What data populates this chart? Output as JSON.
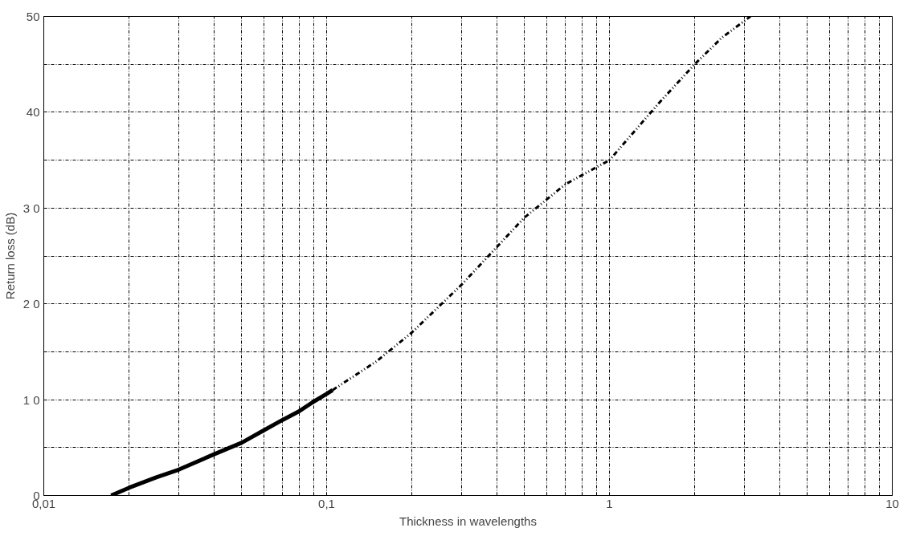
{
  "chart_data": {
    "type": "line",
    "xlabel": "Thickness in wavelengths",
    "ylabel": "Return loss (dB)",
    "log": "x",
    "grid": true,
    "xlim": [
      0.01,
      10
    ],
    "ylim": [
      0,
      50
    ],
    "xticks": [
      {
        "value": 0.01,
        "label": "0,01"
      },
      {
        "value": 0.02,
        "label": null
      },
      {
        "value": 0.03,
        "label": null
      },
      {
        "value": 0.04,
        "label": null
      },
      {
        "value": 0.05,
        "label": null
      },
      {
        "value": 0.06,
        "label": null
      },
      {
        "value": 0.07,
        "label": null
      },
      {
        "value": 0.08,
        "label": null
      },
      {
        "value": 0.09,
        "label": null
      },
      {
        "value": 0.1,
        "label": "0,1"
      },
      {
        "value": 0.2,
        "label": null
      },
      {
        "value": 0.3,
        "label": null
      },
      {
        "value": 0.4,
        "label": null
      },
      {
        "value": 0.5,
        "label": null
      },
      {
        "value": 0.6,
        "label": null
      },
      {
        "value": 0.7,
        "label": null
      },
      {
        "value": 0.8,
        "label": null
      },
      {
        "value": 0.9,
        "label": null
      },
      1,
      {
        "value": 2,
        "label": null
      },
      {
        "value": 3,
        "label": null
      },
      {
        "value": 4,
        "label": null
      },
      {
        "value": 5,
        "label": null
      },
      {
        "value": 6,
        "label": null
      },
      {
        "value": 7,
        "label": null
      },
      {
        "value": 8,
        "label": null
      },
      {
        "value": 9,
        "label": null
      },
      10
    ],
    "yticks": [
      0,
      {
        "value": 5,
        "label": null
      },
      {
        "value": 10,
        "label": "1 0"
      },
      {
        "value": 15,
        "label": null
      },
      {
        "value": 20,
        "label": "2 0"
      },
      {
        "value": 25,
        "label": null
      },
      {
        "value": 30,
        "label": "3 0"
      },
      {
        "value": 35,
        "label": null
      },
      40,
      {
        "value": 45,
        "label": null
      },
      50
    ],
    "series": [
      {
        "color": "#000000",
        "line_style": "solid",
        "x": [
          0.0173,
          0.02,
          0.025,
          0.03,
          0.04,
          0.05,
          0.06,
          0.07,
          0.08,
          0.09,
          0.1,
          0.105
        ],
        "values": [
          0,
          0.8,
          1.9,
          2.7,
          4.3,
          5.5,
          6.8,
          7.9,
          8.8,
          9.8,
          10.6,
          11
        ]
      },
      {
        "color": "#000000",
        "line_style": "dashed",
        "x": [
          0.105,
          0.15,
          0.2,
          0.3,
          0.5,
          0.7,
          1,
          1.5,
          2,
          2.5,
          3.15
        ],
        "values": [
          11,
          14,
          17,
          22,
          29,
          32.5,
          35,
          41,
          45,
          47.8,
          50
        ]
      }
    ]
  }
}
